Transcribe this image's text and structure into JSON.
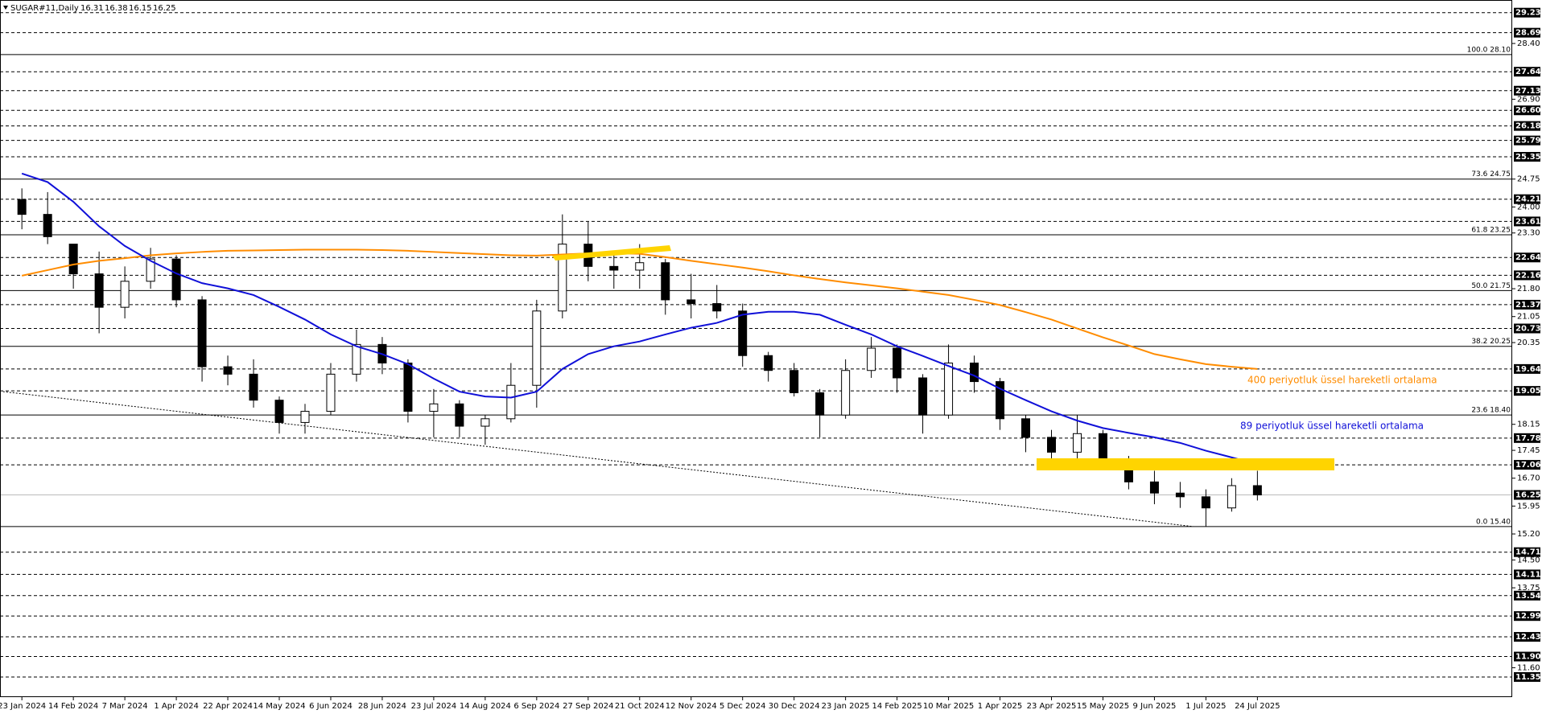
{
  "chart_data": {
    "type": "candlestick",
    "title": "SUGAR#11,Daily",
    "header_values": [
      16.31,
      16.38,
      16.15,
      16.25
    ],
    "ylim": [
      10.83,
      29.57
    ],
    "xlim": [
      -0.85,
      57.9
    ],
    "categories": [
      "23 Jan 2024",
      null,
      "14 Feb 2024",
      null,
      "7 Mar 2024",
      null,
      "1 Apr 2024",
      null,
      "22 Apr 2024",
      null,
      "14 May 2024",
      null,
      "6 Jun 2024",
      null,
      "28 Jun 2024",
      null,
      "23 Jul 2024",
      null,
      "14 Aug 2024",
      null,
      "6 Sep 2024",
      null,
      "27 Sep 2024",
      null,
      "21 Oct 2024",
      null,
      "12 Nov 2024",
      null,
      "5 Dec 2024",
      null,
      "30 Dec 2024",
      null,
      "23 Jan 2025",
      null,
      "14 Feb 2025",
      null,
      "10 Mar 2025",
      null,
      "1 Apr 2025",
      null,
      "23 Apr 2025",
      null,
      "15 May 2025",
      null,
      "9 Jun 2025",
      null,
      "1 Jul 2025",
      null,
      "24 Jul 2025"
    ],
    "candles": {
      "open": [
        24.2,
        23.8,
        23.0,
        22.2,
        21.3,
        22.0,
        22.6,
        21.5,
        19.7,
        19.5,
        18.8,
        18.2,
        18.5,
        19.5,
        20.3,
        19.8,
        18.5,
        18.7,
        18.1,
        18.3,
        19.2,
        21.2,
        23.0,
        22.4,
        22.3,
        22.5,
        21.5,
        21.4,
        21.2,
        20.0,
        19.6,
        19.0,
        18.4,
        19.6,
        20.2,
        19.4,
        18.4,
        19.8,
        19.3,
        18.3,
        17.8,
        17.4,
        17.9,
        17.2,
        16.6,
        16.3,
        16.2,
        15.9,
        16.5
      ],
      "high": [
        24.5,
        24.4,
        23.0,
        22.8,
        22.4,
        22.9,
        22.7,
        21.6,
        20.0,
        19.9,
        18.9,
        18.7,
        19.8,
        20.7,
        20.5,
        19.9,
        19.1,
        18.8,
        18.4,
        19.8,
        21.5,
        23.8,
        23.6,
        22.8,
        23.0,
        22.6,
        22.2,
        21.9,
        21.4,
        20.1,
        19.8,
        19.1,
        19.9,
        20.5,
        20.3,
        19.5,
        20.3,
        20.0,
        19.4,
        18.4,
        18.0,
        18.4,
        18.0,
        17.3,
        16.9,
        16.6,
        16.4,
        16.7,
        16.9
      ],
      "low": [
        23.4,
        23.0,
        21.8,
        20.6,
        21.0,
        21.8,
        21.3,
        19.3,
        19.2,
        18.6,
        17.9,
        17.9,
        18.4,
        19.3,
        19.5,
        18.2,
        17.8,
        17.8,
        17.6,
        18.2,
        18.6,
        21.0,
        22.0,
        21.8,
        21.8,
        21.1,
        21.0,
        21.0,
        19.7,
        19.3,
        18.9,
        17.8,
        18.3,
        19.4,
        19.0,
        17.9,
        18.3,
        19.0,
        18.0,
        17.4,
        17.1,
        17.1,
        17.0,
        16.4,
        16.0,
        15.9,
        15.4,
        15.8,
        16.1
      ],
      "close": [
        23.8,
        23.2,
        22.2,
        21.3,
        22.0,
        22.6,
        21.5,
        19.7,
        19.5,
        18.8,
        18.2,
        18.5,
        19.5,
        20.3,
        19.8,
        18.5,
        18.7,
        18.1,
        18.3,
        19.2,
        21.2,
        23.0,
        22.4,
        22.3,
        22.5,
        21.5,
        21.4,
        21.2,
        20.0,
        19.6,
        19.0,
        18.4,
        19.6,
        20.2,
        19.4,
        18.4,
        19.8,
        19.3,
        18.3,
        17.8,
        17.4,
        17.9,
        17.2,
        16.6,
        16.3,
        16.2,
        15.9,
        16.5,
        16.25
      ]
    },
    "series": [
      {
        "name": "400 periyotluk üssel hareketli ortalama",
        "color": "#ff8c00",
        "values": [
          22.15,
          22.3,
          22.45,
          22.55,
          22.62,
          22.7,
          22.75,
          22.79,
          22.82,
          22.83,
          22.84,
          22.85,
          22.85,
          22.85,
          22.84,
          22.82,
          22.79,
          22.76,
          22.73,
          22.7,
          22.69,
          22.72,
          22.75,
          22.75,
          22.74,
          22.65,
          22.55,
          22.46,
          22.37,
          22.27,
          22.16,
          22.06,
          21.97,
          21.89,
          21.81,
          21.72,
          21.63,
          21.5,
          21.36,
          21.17,
          20.97,
          20.73,
          20.49,
          20.27,
          20.04,
          19.9,
          19.77,
          19.7,
          19.64
        ]
      },
      {
        "name": "89 periyotluk üssel hareketli ortalama",
        "color": "#1010d8",
        "values": [
          24.9,
          24.67,
          24.14,
          23.48,
          22.95,
          22.55,
          22.21,
          21.95,
          21.81,
          21.63,
          21.31,
          20.97,
          20.57,
          20.25,
          20.04,
          19.77,
          19.38,
          19.03,
          18.9,
          18.87,
          19.03,
          19.64,
          20.04,
          20.25,
          20.38,
          20.57,
          20.75,
          20.88,
          21.1,
          21.18,
          21.18,
          21.1,
          20.83,
          20.57,
          20.25,
          19.99,
          19.72,
          19.46,
          19.11,
          18.8,
          18.5,
          18.25,
          18.05,
          17.92,
          17.8,
          17.65,
          17.44,
          17.26,
          17.07
        ]
      }
    ],
    "trendline": {
      "x": [
        -0.73,
        45.5
      ],
      "y": [
        19.03,
        15.4
      ]
    },
    "last_price": {
      "value": 16.25,
      "label": "16.25"
    },
    "levels": [
      {
        "value": 29.23,
        "label": "29.23"
      },
      {
        "value": 28.69,
        "label": "28.69"
      },
      {
        "value": 27.64,
        "label": "27.64"
      },
      {
        "value": 27.13,
        "label": "27.13"
      },
      {
        "value": 26.6,
        "label": "26.60"
      },
      {
        "value": 26.18,
        "label": "26.18"
      },
      {
        "value": 25.79,
        "label": "25.79"
      },
      {
        "value": 25.35,
        "label": "25.35"
      },
      {
        "value": 24.21,
        "label": "24.21"
      },
      {
        "value": 23.61,
        "label": "23.61"
      },
      {
        "value": 22.64,
        "label": "22.64"
      },
      {
        "value": 22.16,
        "label": "22.16"
      },
      {
        "value": 21.37,
        "label": "21.37"
      },
      {
        "value": 20.73,
        "label": "20.73"
      },
      {
        "value": 19.64,
        "label": "19.64"
      },
      {
        "value": 19.05,
        "label": "19.05"
      },
      {
        "value": 17.78,
        "label": "17.78"
      },
      {
        "value": 17.06,
        "label": "17.06"
      },
      {
        "value": 14.71,
        "label": "14.71"
      },
      {
        "value": 14.11,
        "label": "14.11"
      },
      {
        "value": 13.54,
        "label": "13.54"
      },
      {
        "value": 12.99,
        "label": "12.99"
      },
      {
        "value": 12.43,
        "label": "12.43"
      },
      {
        "value": 11.9,
        "label": "11.90"
      },
      {
        "value": 11.35,
        "label": "11.35"
      }
    ],
    "yticks": [
      {
        "value": 28.4,
        "label": "28.40"
      },
      {
        "value": 26.9,
        "label": "26.90"
      },
      {
        "value": 24.75,
        "label": "24.75"
      },
      {
        "value": 24.0,
        "label": "24.00"
      },
      {
        "value": 23.3,
        "label": "23.30"
      },
      {
        "value": 21.8,
        "label": "21.80"
      },
      {
        "value": 21.05,
        "label": "21.05"
      },
      {
        "value": 20.35,
        "label": "20.35"
      },
      {
        "value": 18.15,
        "label": "18.15"
      },
      {
        "value": 17.45,
        "label": "17.45"
      },
      {
        "value": 16.7,
        "label": "16.70"
      },
      {
        "value": 15.95,
        "label": "15.95"
      },
      {
        "value": 15.2,
        "label": "15.20"
      },
      {
        "value": 14.5,
        "label": "14.50"
      },
      {
        "value": 13.75,
        "label": "13.75"
      },
      {
        "value": 11.6,
        "label": "11.60"
      }
    ],
    "fib_levels": [
      {
        "value": 28.1,
        "label": "100.0 28.10"
      },
      {
        "value": 24.75,
        "label": "73.6 24.75"
      },
      {
        "value": 23.25,
        "label": "61.8 23.25"
      },
      {
        "value": 21.75,
        "label": "50.0 21.75"
      },
      {
        "value": 20.25,
        "label": "38.2 20.25"
      },
      {
        "value": 18.4,
        "label": "23.6 18.40"
      },
      {
        "value": 15.4,
        "label": "0.0 15.40"
      }
    ]
  }
}
